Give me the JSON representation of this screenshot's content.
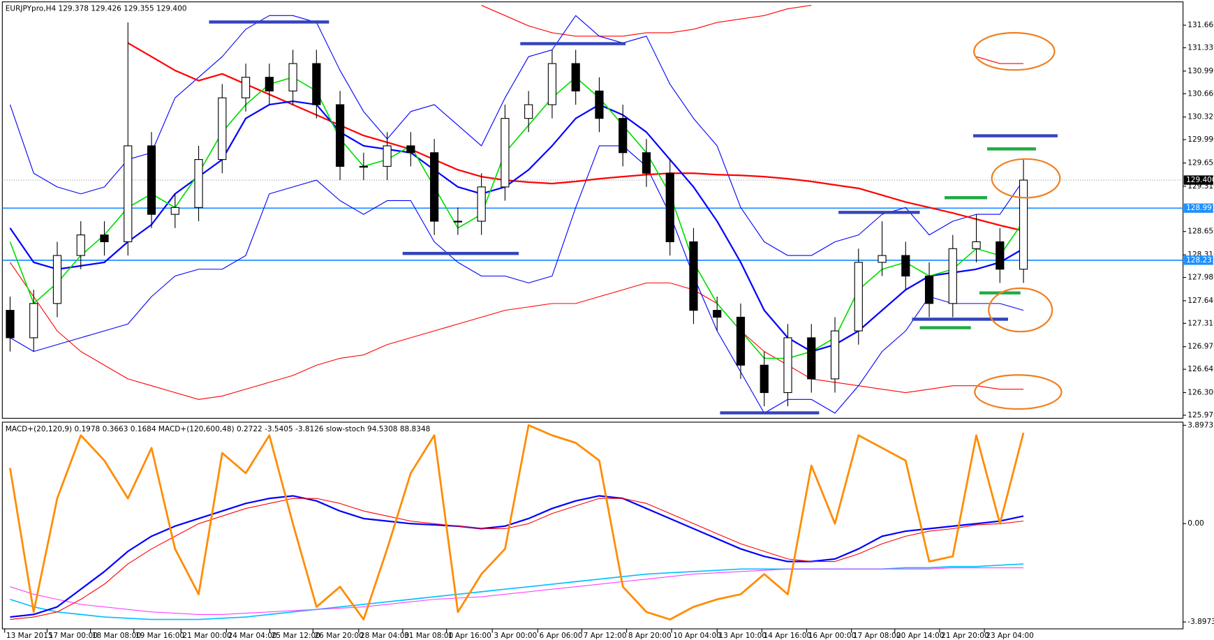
{
  "chart_data": [
    {
      "type": "candlestick",
      "title": "EURJPYpro,H4  129.378 129.426 129.355 129.400",
      "x": [
        0,
        1,
        2,
        3,
        4,
        5,
        6,
        7,
        8,
        9,
        10,
        11,
        12,
        13,
        14,
        15,
        16,
        17,
        18,
        19,
        20,
        21,
        22,
        23,
        24,
        25,
        26,
        27,
        28,
        29,
        30,
        31,
        32,
        33,
        34,
        35,
        36,
        37,
        38,
        39,
        40,
        41,
        42,
        43
      ],
      "open": [
        127.5,
        127.1,
        127.6,
        128.3,
        128.6,
        128.5,
        129.9,
        128.9,
        129.0,
        129.7,
        130.6,
        130.9,
        130.7,
        131.1,
        130.5,
        129.6,
        129.6,
        129.9,
        129.8,
        128.8,
        128.8,
        129.3,
        130.3,
        130.5,
        131.1,
        130.7,
        130.3,
        129.8,
        129.5,
        128.5,
        127.5,
        127.4,
        126.7,
        126.3,
        127.1,
        126.5,
        127.2,
        128.2,
        128.3,
        128.0,
        127.6,
        128.4,
        128.5,
        128.1
      ],
      "high": [
        127.7,
        127.8,
        128.5,
        128.8,
        128.8,
        131.7,
        130.1,
        129.2,
        129.9,
        130.8,
        131.1,
        131.1,
        131.3,
        131.3,
        130.7,
        129.8,
        130.1,
        130.1,
        130.0,
        129.0,
        129.5,
        130.5,
        130.7,
        131.3,
        131.3,
        130.9,
        130.5,
        130.0,
        129.7,
        128.7,
        127.7,
        127.6,
        126.9,
        127.3,
        127.3,
        127.4,
        128.4,
        128.8,
        128.5,
        128.2,
        128.6,
        128.9,
        128.7,
        129.7
      ],
      "low": [
        126.9,
        126.9,
        127.4,
        128.1,
        128.3,
        128.3,
        128.7,
        128.7,
        128.8,
        129.5,
        130.4,
        130.5,
        130.5,
        130.3,
        129.4,
        129.4,
        129.4,
        129.6,
        128.6,
        128.6,
        128.6,
        129.1,
        130.1,
        130.3,
        130.5,
        130.1,
        129.6,
        129.3,
        128.3,
        127.3,
        127.2,
        126.5,
        126.1,
        126.1,
        126.3,
        126.3,
        127.0,
        128.0,
        127.8,
        127.4,
        127.4,
        128.2,
        127.9,
        127.9
      ],
      "close": [
        127.1,
        127.6,
        128.3,
        128.6,
        128.5,
        129.9,
        128.9,
        129.0,
        129.7,
        130.6,
        130.9,
        130.7,
        131.1,
        130.5,
        129.6,
        129.6,
        129.9,
        129.8,
        128.8,
        128.8,
        129.3,
        130.3,
        130.5,
        131.1,
        130.7,
        130.3,
        129.8,
        129.5,
        128.5,
        127.5,
        127.4,
        126.7,
        126.3,
        127.1,
        126.5,
        127.2,
        128.2,
        128.3,
        128.0,
        127.6,
        128.4,
        128.5,
        128.1,
        129.4
      ],
      "lines": [
        {
          "color": "#ff0000",
          "width": 1,
          "values": [
            null,
            null,
            null,
            null,
            null,
            null,
            null,
            null,
            null,
            null,
            null,
            null,
            null,
            null,
            null,
            null,
            null,
            null,
            null,
            null,
            131.95,
            131.8,
            131.65,
            131.55,
            131.5,
            131.5,
            131.5,
            131.55,
            131.55,
            131.6,
            131.7,
            131.75,
            131.8,
            131.9,
            131.95,
            null,
            null,
            null,
            null,
            null,
            null,
            131.2,
            131.1,
            131.1
          ]
        },
        {
          "color": "#ff0000",
          "width": 1,
          "values": [
            128.2,
            127.7,
            127.2,
            126.9,
            126.7,
            126.5,
            126.4,
            126.3,
            126.2,
            126.25,
            126.35,
            126.45,
            126.55,
            126.7,
            126.8,
            126.85,
            127.0,
            127.1,
            127.2,
            127.3,
            127.4,
            127.5,
            127.55,
            127.6,
            127.6,
            127.7,
            127.8,
            127.9,
            127.9,
            127.8,
            127.6,
            127.2,
            126.9,
            126.7,
            126.5,
            126.45,
            126.4,
            126.35,
            126.3,
            126.35,
            126.4,
            126.4,
            126.35,
            126.35
          ]
        },
        {
          "color": "#0000ff",
          "width": 1,
          "values": [
            130.5,
            129.5,
            129.3,
            129.2,
            129.3,
            129.7,
            129.8,
            130.6,
            130.9,
            131.2,
            131.6,
            131.8,
            131.8,
            131.7,
            131.0,
            130.4,
            130.0,
            130.4,
            130.5,
            130.2,
            129.9,
            130.6,
            131.2,
            131.3,
            131.8,
            131.5,
            131.4,
            131.5,
            130.8,
            130.3,
            129.9,
            129.0,
            128.5,
            128.3,
            128.3,
            128.5,
            128.6,
            128.9,
            129.0,
            128.6,
            128.8,
            128.9,
            128.9,
            129.4
          ]
        },
        {
          "color": "#0000ff",
          "width": 1,
          "values": [
            127.1,
            126.9,
            127.0,
            127.1,
            127.2,
            127.3,
            127.7,
            128.0,
            128.1,
            128.1,
            128.3,
            129.2,
            129.3,
            129.4,
            129.1,
            128.9,
            129.1,
            129.1,
            128.5,
            128.2,
            128.0,
            128.0,
            127.9,
            128.0,
            129.0,
            129.9,
            129.9,
            129.6,
            128.9,
            128.0,
            127.2,
            126.6,
            126.0,
            126.2,
            126.2,
            126.0,
            126.4,
            126.9,
            127.2,
            127.7,
            127.6,
            127.6,
            127.6,
            127.5
          ]
        },
        {
          "color": "#ff0000",
          "width": 2,
          "values": [
            null,
            null,
            null,
            null,
            null,
            131.4,
            131.2,
            131.0,
            130.85,
            130.95,
            130.8,
            130.65,
            130.5,
            130.35,
            130.2,
            130.05,
            129.95,
            129.85,
            129.7,
            129.55,
            129.45,
            129.4,
            129.37,
            129.35,
            129.38,
            129.42,
            129.45,
            129.48,
            129.5,
            129.5,
            129.48,
            129.47,
            129.45,
            129.42,
            129.38,
            129.33,
            129.28,
            129.18,
            129.08,
            129.0,
            128.92,
            128.83,
            128.74,
            128.66
          ]
        },
        {
          "color": "#0000ff",
          "width": 2,
          "values": [
            128.7,
            128.2,
            128.1,
            128.15,
            128.2,
            128.5,
            128.75,
            129.2,
            129.45,
            129.7,
            130.3,
            130.5,
            130.55,
            130.5,
            130.1,
            129.9,
            129.85,
            129.8,
            129.55,
            129.3,
            129.2,
            129.3,
            129.55,
            129.9,
            130.3,
            130.5,
            130.35,
            130.1,
            129.7,
            129.3,
            128.8,
            128.2,
            127.5,
            127.1,
            126.9,
            127.0,
            127.2,
            127.5,
            127.8,
            128.0,
            128.05,
            128.1,
            128.2,
            128.4
          ]
        },
        {
          "color": "#00e000",
          "width": 1.5,
          "values": [
            128.5,
            127.6,
            127.9,
            128.3,
            128.6,
            129.0,
            129.2,
            129.0,
            129.5,
            130.1,
            130.5,
            130.8,
            130.9,
            130.7,
            130.0,
            129.6,
            129.7,
            129.9,
            129.3,
            128.7,
            128.9,
            129.8,
            130.2,
            130.6,
            130.9,
            130.6,
            130.2,
            129.8,
            129.2,
            128.2,
            127.6,
            127.2,
            126.8,
            126.8,
            126.9,
            127.1,
            127.8,
            128.1,
            128.2,
            128.0,
            128.1,
            128.4,
            128.3,
            128.8
          ]
        }
      ],
      "hlines": [
        {
          "value": 128.991,
          "label": "128.991",
          "color": "#1e90ff"
        },
        {
          "value": 128.231,
          "label": "128.231",
          "color": "#1e90ff"
        }
      ],
      "last_price": {
        "value": 129.4,
        "label": "129.400"
      },
      "xlim": [
        -0.33,
        49.77
      ],
      "ylim": [
        125.925,
        132.0
      ],
      "yticks": [
        {
          "value": 131.66,
          "label": "131.660"
        },
        {
          "value": 131.33,
          "label": "131.330"
        },
        {
          "value": 130.99,
          "label": "130.990"
        },
        {
          "value": 130.66,
          "label": "130.660"
        },
        {
          "value": 130.32,
          "label": "130.320"
        },
        {
          "value": 129.99,
          "label": "129.990"
        },
        {
          "value": 129.65,
          "label": "129.650"
        },
        {
          "value": 129.31,
          "label": "129.310"
        },
        {
          "value": 128.65,
          "label": "128.650"
        },
        {
          "value": 128.31,
          "label": "128.310"
        },
        {
          "value": 127.98,
          "label": "127.980"
        },
        {
          "value": 127.64,
          "label": "127.640"
        },
        {
          "value": 127.31,
          "label": "127.310"
        },
        {
          "value": 126.97,
          "label": "126.970"
        },
        {
          "value": 126.64,
          "label": "126.640"
        },
        {
          "value": 126.3,
          "label": "126.300"
        },
        {
          "value": 125.97,
          "label": "125.970"
        }
      ]
    },
    {
      "type": "line",
      "title": "MACD+(20,120,9) 0.1978 0.3663 0.1684  MACD+(120,600,48) 0.2722 -3.5405 -3.8126  slow-stoch 94.5308 88.8348",
      "x": [
        0,
        1,
        2,
        3,
        4,
        5,
        6,
        7,
        8,
        9,
        10,
        11,
        12,
        13,
        14,
        15,
        16,
        17,
        18,
        19,
        20,
        21,
        22,
        23,
        24,
        25,
        26,
        27,
        28,
        29,
        30,
        31,
        32,
        33,
        34,
        35,
        36,
        37,
        38,
        39,
        40,
        41,
        42,
        43
      ],
      "series": [
        {
          "color": "#00bfff",
          "width": 1.5,
          "values": [
            -3.0,
            -3.3,
            -3.5,
            -3.6,
            -3.7,
            -3.75,
            -3.8,
            -3.8,
            -3.8,
            -3.75,
            -3.7,
            -3.6,
            -3.5,
            -3.4,
            -3.3,
            -3.2,
            -3.1,
            -3.0,
            -2.9,
            -2.8,
            -2.7,
            -2.6,
            -2.5,
            -2.4,
            -2.3,
            -2.2,
            -2.1,
            -2.0,
            -1.95,
            -1.9,
            -1.85,
            -1.8,
            -1.8,
            -1.8,
            -1.8,
            -1.8,
            -1.8,
            -1.8,
            -1.75,
            -1.75,
            -1.7,
            -1.7,
            -1.65,
            -1.6
          ]
        },
        {
          "color": "#ff40ff",
          "width": 1,
          "values": [
            -2.5,
            -2.8,
            -3.0,
            -3.2,
            -3.3,
            -3.4,
            -3.5,
            -3.55,
            -3.6,
            -3.6,
            -3.55,
            -3.5,
            -3.45,
            -3.4,
            -3.35,
            -3.3,
            -3.2,
            -3.1,
            -3.0,
            -2.95,
            -2.9,
            -2.8,
            -2.7,
            -2.6,
            -2.5,
            -2.4,
            -2.3,
            -2.2,
            -2.1,
            -2.0,
            -1.95,
            -1.9,
            -1.85,
            -1.8,
            -1.8,
            -1.8,
            -1.8,
            -1.8,
            -1.8,
            -1.8,
            -1.75,
            -1.75,
            -1.75,
            -1.75
          ]
        },
        {
          "color": "#0000ff",
          "width": 2,
          "values": [
            -3.7,
            -3.6,
            -3.3,
            -2.6,
            -1.9,
            -1.1,
            -0.5,
            -0.1,
            0.2,
            0.5,
            0.8,
            1.0,
            1.1,
            0.9,
            0.5,
            0.2,
            0.1,
            0.0,
            -0.05,
            -0.1,
            -0.2,
            -0.1,
            0.2,
            0.6,
            0.9,
            1.1,
            1.0,
            0.6,
            0.2,
            -0.2,
            -0.6,
            -1.0,
            -1.3,
            -1.5,
            -1.5,
            -1.4,
            -1.0,
            -0.5,
            -0.3,
            -0.2,
            -0.1,
            0.0,
            0.1,
            0.3
          ]
        },
        {
          "color": "#ff0000",
          "width": 1,
          "values": [
            -3.8,
            -3.7,
            -3.5,
            -3.0,
            -2.4,
            -1.6,
            -1.0,
            -0.5,
            0.0,
            0.3,
            0.6,
            0.8,
            1.0,
            1.0,
            0.8,
            0.5,
            0.3,
            0.1,
            0.0,
            -0.1,
            -0.2,
            -0.2,
            0.0,
            0.4,
            0.7,
            1.0,
            1.0,
            0.8,
            0.4,
            0.0,
            -0.4,
            -0.8,
            -1.1,
            -1.4,
            -1.5,
            -1.5,
            -1.2,
            -0.8,
            -0.5,
            -0.3,
            -0.2,
            -0.05,
            0.0,
            0.1
          ]
        },
        {
          "color": "#ff8c00",
          "width": 2.5,
          "values": [
            2.2,
            -3.5,
            1.0,
            3.5,
            2.5,
            1.0,
            3.0,
            -1.0,
            -2.8,
            2.8,
            2.0,
            3.5,
            0.0,
            -3.3,
            -2.5,
            -3.8,
            -1.0,
            2.0,
            3.5,
            -3.5,
            -2.0,
            -1.0,
            3.9,
            3.5,
            3.2,
            2.5,
            -2.5,
            -3.5,
            -3.8,
            -3.3,
            -3.0,
            -2.8,
            -2.0,
            -2.8,
            2.3,
            0.0,
            3.5,
            3.0,
            2.5,
            -1.5,
            -1.3,
            3.5,
            0.0,
            3.6
          ]
        }
      ],
      "xlim": [
        -0.33,
        49.77
      ],
      "ylim": [
        -4.17,
        4.02
      ],
      "yticks": [
        3.8973,
        {
          "value": 0,
          "label": "0.00"
        },
        -3.8973
      ],
      "xticks": [
        {
          "value": -0.23,
          "label": "13 Mar 2015"
        },
        {
          "value": 1.57,
          "label": "17 Mar 00:00"
        },
        {
          "value": 3.41,
          "label": "18 Mar 08:00"
        },
        {
          "value": 5.25,
          "label": "19 Mar 16:00"
        },
        {
          "value": 7.25,
          "label": "21 Mar 00:00"
        },
        {
          "value": 9.18,
          "label": "24 Mar 04:00"
        },
        {
          "value": 11.02,
          "label": "25 Mar 12:00"
        },
        {
          "value": 12.85,
          "label": "26 Mar 20:00"
        },
        {
          "value": 14.79,
          "label": "28 Mar 04:00"
        },
        {
          "value": 16.66,
          "label": "31 Mar 08:00"
        },
        {
          "value": 18.52,
          "label": "1 Apr 16:00"
        },
        {
          "value": 20.46,
          "label": "3 Apr 00:00"
        },
        {
          "value": 22.39,
          "label": "6 Apr 06:00"
        },
        {
          "value": 24.26,
          "label": "7 Apr 12:00"
        },
        {
          "value": 26.16,
          "label": "8 Apr 20:00"
        },
        {
          "value": 28.07,
          "label": "10 Apr 04:00"
        },
        {
          "value": 30.0,
          "label": "13 Apr 10:00"
        },
        {
          "value": 31.9,
          "label": "14 Apr 16:00"
        },
        {
          "value": 33.8,
          "label": "16 Apr 00:00"
        },
        {
          "value": 35.7,
          "label": "17 Apr 08:00"
        },
        {
          "value": 37.54,
          "label": "20 Apr 14:00"
        },
        {
          "value": 39.44,
          "label": "21 Apr 20:00"
        },
        {
          "value": 41.34,
          "label": "23 Apr 04:00"
        }
      ]
    }
  ]
}
